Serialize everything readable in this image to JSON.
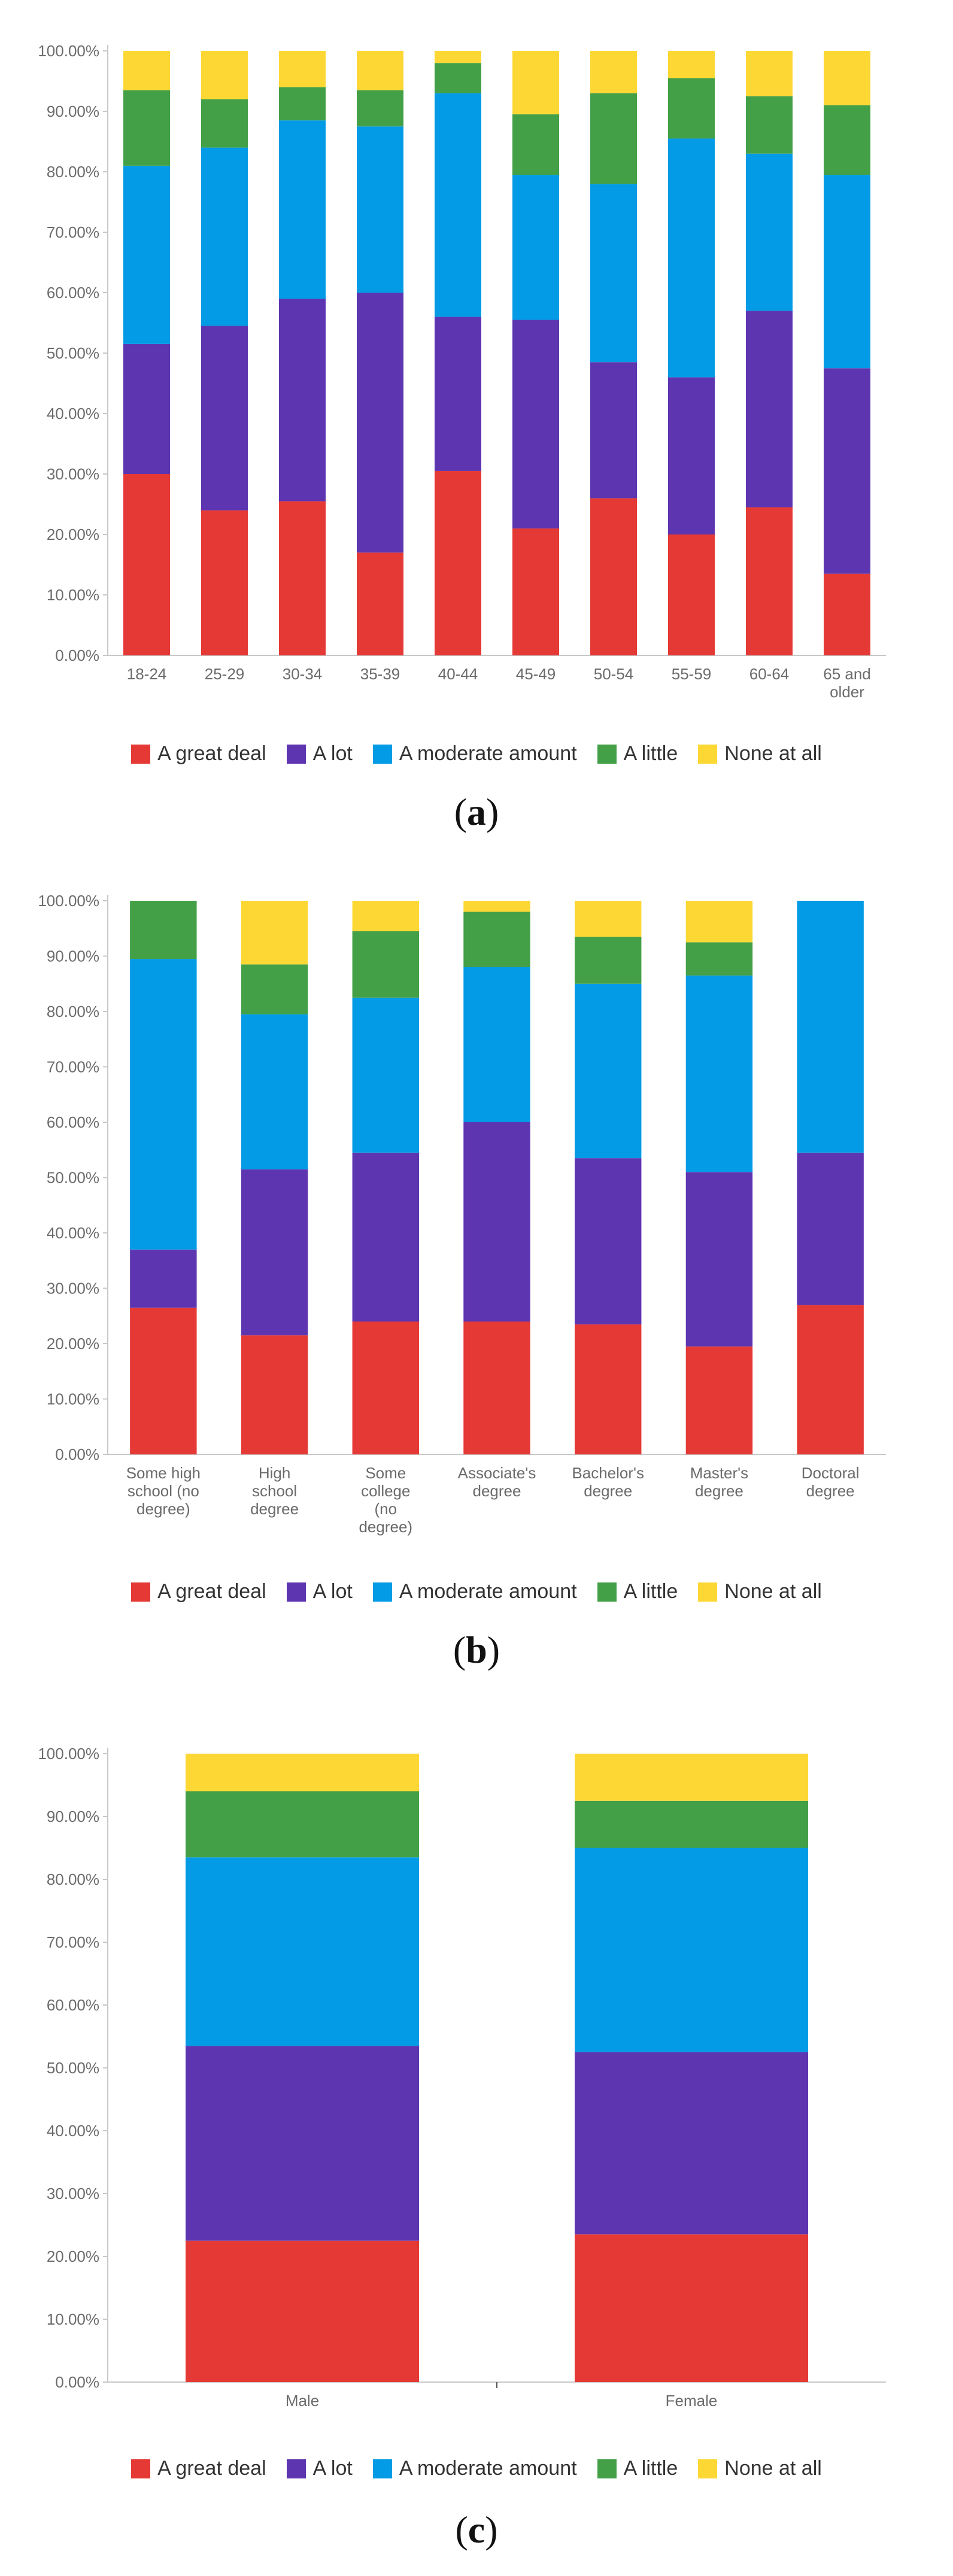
{
  "series_colors": [
    "#e53935",
    "#5e35b1",
    "#039be5",
    "#43a047",
    "#fdd835"
  ],
  "legend_labels": [
    "A great deal",
    "A lot",
    "A moderate amount",
    "A little",
    "None at all"
  ],
  "chart_data": [
    {
      "type": "bar",
      "stacked": true,
      "caption_letter": "a",
      "categories": [
        "18-24",
        "25-29",
        "30-34",
        "35-39",
        "40-44",
        "45-49",
        "50-54",
        "55-59",
        "60-64",
        "65 and older"
      ],
      "yticks": [
        "0.00%",
        "10.00%",
        "20.00%",
        "30.00%",
        "40.00%",
        "50.00%",
        "60.00%",
        "70.00%",
        "80.00%",
        "90.00%",
        "100.00%"
      ],
      "ylim": [
        0,
        100
      ],
      "series": [
        {
          "name": "A great deal",
          "values": [
            30,
            24,
            25.5,
            17,
            30.5,
            21,
            26,
            20,
            24.5,
            13.5
          ]
        },
        {
          "name": "A lot",
          "values": [
            21.5,
            30.5,
            33.5,
            43,
            25.5,
            34.5,
            22.5,
            26,
            32.5,
            34
          ]
        },
        {
          "name": "A moderate amount",
          "values": [
            29.5,
            29.5,
            29.5,
            27.5,
            37,
            24,
            29.5,
            39.5,
            26,
            32
          ]
        },
        {
          "name": "A little",
          "values": [
            12.5,
            8,
            5.5,
            6,
            5,
            10,
            15,
            10,
            9.5,
            11.5
          ]
        },
        {
          "name": "None at all",
          "values": [
            6.5,
            8,
            6,
            6.5,
            2,
            10.5,
            7,
            4.5,
            7.5,
            9
          ]
        }
      ]
    },
    {
      "type": "bar",
      "stacked": true,
      "caption_letter": "b",
      "categories": [
        "Some high school (no degree)",
        "High school degree",
        "Some college (no degree)",
        "Associate's degree",
        "Bachelor's degree",
        "Master's degree",
        "Doctoral degree"
      ],
      "yticks": [
        "0.00%",
        "10.00%",
        "20.00%",
        "30.00%",
        "40.00%",
        "50.00%",
        "60.00%",
        "70.00%",
        "80.00%",
        "90.00%",
        "100.00%"
      ],
      "ylim": [
        0,
        100
      ],
      "series": [
        {
          "name": "A great deal",
          "values": [
            26.5,
            21.5,
            24,
            24,
            23.5,
            19.5,
            27
          ]
        },
        {
          "name": "A lot",
          "values": [
            10.5,
            30,
            30.5,
            36,
            30,
            31.5,
            27.5
          ]
        },
        {
          "name": "A moderate amount",
          "values": [
            52.5,
            28,
            28,
            28,
            31.5,
            35.5,
            45.5
          ]
        },
        {
          "name": "A little",
          "values": [
            10.5,
            9,
            12,
            10,
            8.5,
            6,
            0
          ]
        },
        {
          "name": "None at all",
          "values": [
            0,
            11.5,
            5.5,
            2,
            6.5,
            7.5,
            0
          ]
        }
      ]
    },
    {
      "type": "bar",
      "stacked": true,
      "caption_letter": "c",
      "categories": [
        "Male",
        "Female"
      ],
      "yticks": [
        "0.00%",
        "10.00%",
        "20.00%",
        "30.00%",
        "40.00%",
        "50.00%",
        "60.00%",
        "70.00%",
        "80.00%",
        "90.00%",
        "100.00%"
      ],
      "ylim": [
        0,
        100
      ],
      "series": [
        {
          "name": "A great deal",
          "values": [
            22.5,
            23.5
          ]
        },
        {
          "name": "A lot",
          "values": [
            31,
            29
          ]
        },
        {
          "name": "A moderate amount",
          "values": [
            30,
            32.5
          ]
        },
        {
          "name": "A little",
          "values": [
            10.5,
            7.5
          ]
        },
        {
          "name": "None at all",
          "values": [
            6,
            7.5
          ]
        }
      ]
    }
  ]
}
